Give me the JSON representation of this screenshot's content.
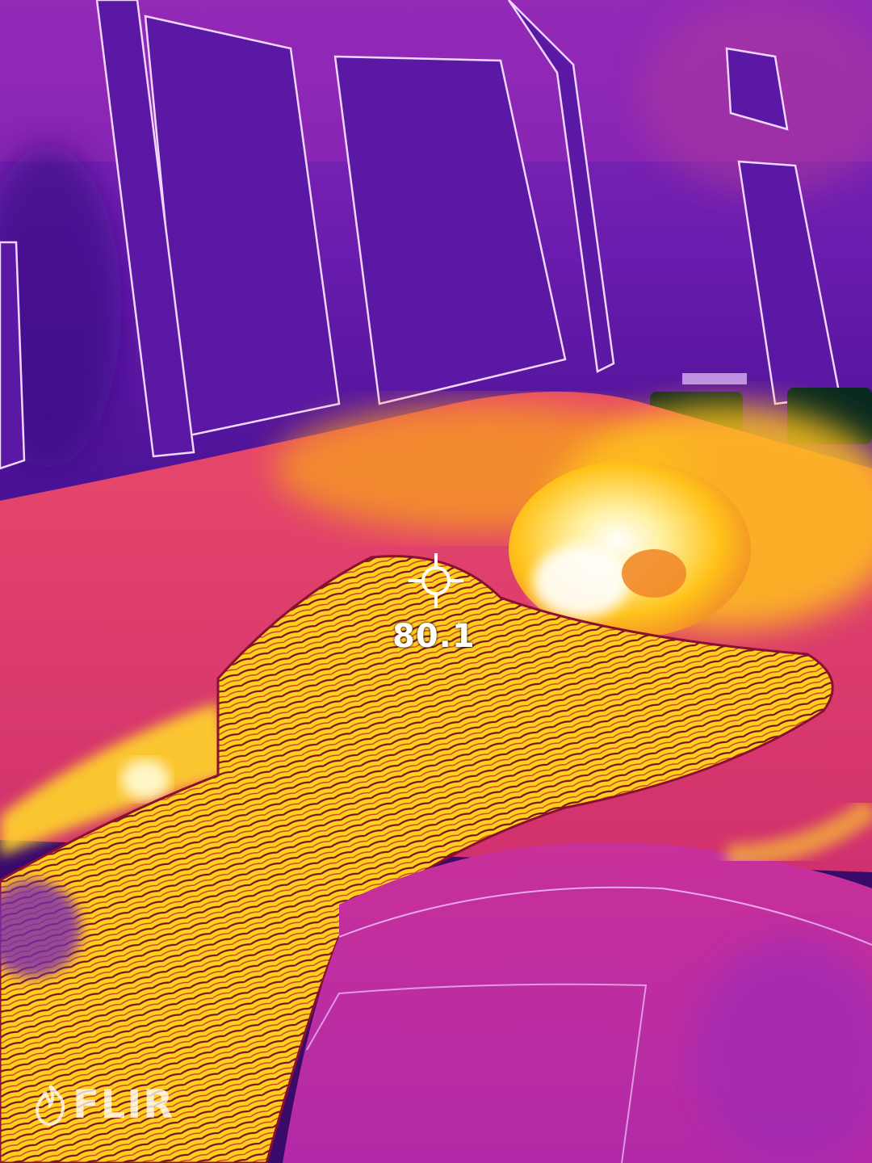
{
  "measurement": {
    "value": "80.1",
    "unit": "°"
  },
  "watermark": {
    "brand": "FLIR"
  },
  "palette": {
    "coldest": "#2a0a6e",
    "cold": "#5b1aa8",
    "cool": "#9a2bb8",
    "warm": "#e0307a",
    "hot": "#f07a2a",
    "hotter": "#ffc21a",
    "hottest": "#fff6c8",
    "edge": "#ffffff"
  },
  "icons": {
    "crosshair": "spot-meter-icon",
    "logo": "flir-flame-icon"
  }
}
